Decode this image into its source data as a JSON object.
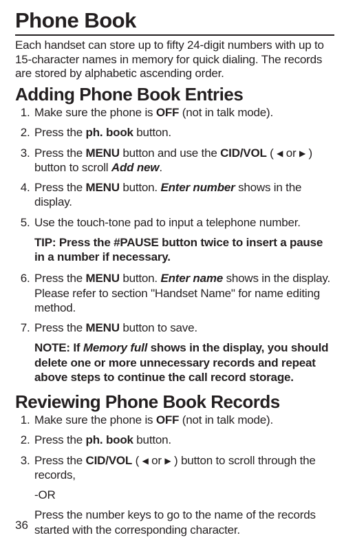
{
  "title": "Phone Book",
  "intro": "Each handset can store up to fifty 24-digit numbers with up to 15-character names in memory for quick dialing. The records are stored by alphabetic ascending order.",
  "section1": {
    "heading": "Adding Phone Book Entries",
    "s1_pre": "Make sure the phone is ",
    "s1_off": "OFF",
    "s1_post": " (not in talk mode).",
    "s2_pre": "Press the ",
    "s2_btn": "ph. book",
    "s2_post": " button.",
    "s3_pre": "Press the ",
    "s3_menu": "MENU",
    "s3_mid": " button and use the ",
    "s3_cid": "CID/VOL",
    "s3_paren_open": " ( ",
    "s3_or": " or ",
    "s3_paren_close": " ) button to scroll ",
    "s3_addnew": "Add new",
    "s3_end": ".",
    "s4_pre": "Press the ",
    "s4_menu": "MENU",
    "s4_mid": " button. ",
    "s4_enter": "Enter number",
    "s4_post": " shows in the display.",
    "s5": "Use the touch-tone pad to input a telephone number.",
    "tip": "TIP: Press the #PAUSE button twice to insert a pause in a number if necessary.",
    "s6_pre": "Press the ",
    "s6_menu": "MENU",
    "s6_mid": " button. ",
    "s6_enter": "Enter name",
    "s6_post": " shows in the display. Please refer to section \"Handset Name\" for name editing method.",
    "s7_pre": "Press the ",
    "s7_menu": "MENU",
    "s7_post": " button to save.",
    "note_pre": "NOTE: If ",
    "note_mem": "Memory full",
    "note_post": " shows in the display, you should delete one or more unnecessary records and repeat above steps to continue the call record storage."
  },
  "section2": {
    "heading": "Reviewing Phone Book Records",
    "s1_pre": "Make sure the phone is ",
    "s1_off": "OFF",
    "s1_post": " (not in talk mode).",
    "s2_pre": "Press the ",
    "s2_btn": "ph. book",
    "s2_post": " button.",
    "s3_pre": "Press the ",
    "s3_cid": "CID/VOL",
    "s3_paren_open": " ( ",
    "s3_or": " or ",
    "s3_paren_close": " ) button to scroll through the records,",
    "s3_or_line": "-OR",
    "s3_press": "Press the number keys to go to the name of the records started with the corresponding character."
  },
  "pagenum": "36"
}
